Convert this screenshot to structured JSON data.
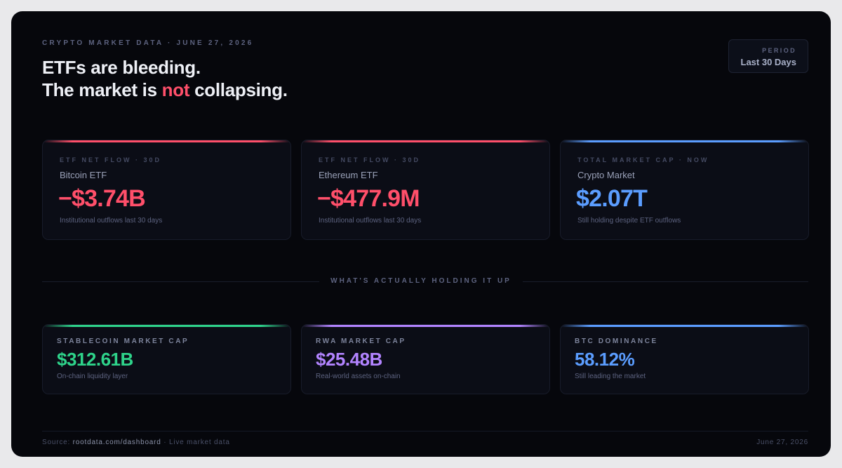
{
  "header": {
    "eyebrow": "CRYPTO MARKET DATA · JUNE 27, 2026",
    "headline_line1": "ETFs are bleeding.",
    "headline_line2_pre": "The market is ",
    "headline_line2_emph": "not",
    "headline_line2_post": " collapsing."
  },
  "period": {
    "label": "PERIOD",
    "value": "Last 30 Days"
  },
  "top_cards": [
    {
      "caption": "ETF NET FLOW · 30D",
      "name": "Bitcoin ETF",
      "value": "−$3.74B",
      "subtitle": "Institutional outflows last 30 days",
      "accent": "#ff4f6a"
    },
    {
      "caption": "ETF NET FLOW · 30D",
      "name": "Ethereum ETF",
      "value": "−$477.9M",
      "subtitle": "Institutional outflows last 30 days",
      "accent": "#ff4f6a"
    },
    {
      "caption": "TOTAL MARKET CAP · NOW",
      "name": "Crypto Market",
      "value": "$2.07T",
      "subtitle": "Still holding despite ETF outflows",
      "accent": "#5b9dff"
    }
  ],
  "divider_label": "WHAT'S ACTUALLY HOLDING IT UP",
  "bottom_cards": [
    {
      "caption": "STABLECOIN MARKET CAP",
      "value": "$312.61B",
      "subtitle": "On-chain liquidity layer",
      "accent": "#2ed38a"
    },
    {
      "caption": "RWA MARKET CAP",
      "value": "$25.48B",
      "subtitle": "Real-world assets on-chain",
      "accent": "#b284ff"
    },
    {
      "caption": "BTC DOMINANCE",
      "value": "58.12%",
      "subtitle": "Still leading the market",
      "accent": "#5b9dff"
    }
  ],
  "footer": {
    "source_prefix": "Source: ",
    "source": "rootdata.com/dashboard",
    "source_suffix": " · Live market data",
    "date": "June 27, 2026"
  }
}
